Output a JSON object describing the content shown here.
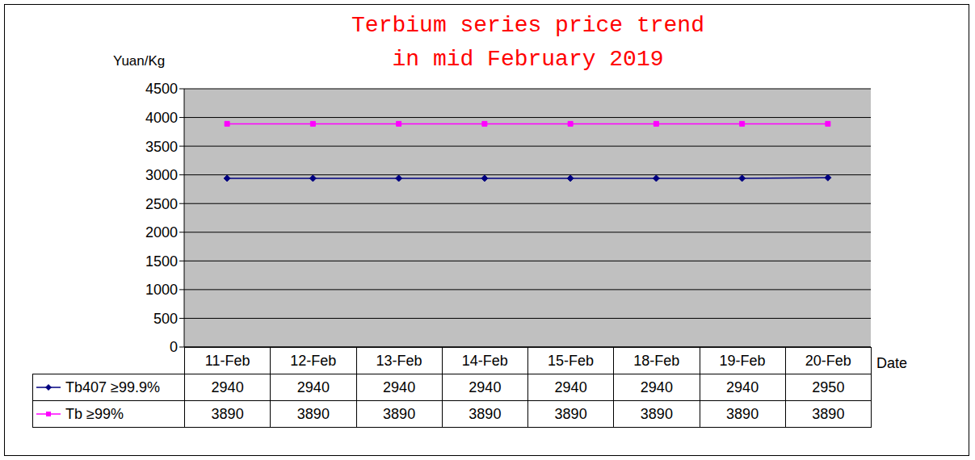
{
  "chart_data": {
    "type": "line",
    "title": "Terbium series price trend\nin mid February 2019",
    "y_label": "Yuan/Kg",
    "x_label": "Date",
    "categories": [
      "11-Feb",
      "12-Feb",
      "13-Feb",
      "14-Feb",
      "15-Feb",
      "18-Feb",
      "19-Feb",
      "20-Feb"
    ],
    "series": [
      {
        "name": "Tb407 ≥99.9%",
        "color": "#000080",
        "marker": "diamond",
        "values": [
          2940,
          2940,
          2940,
          2940,
          2940,
          2940,
          2940,
          2950
        ]
      },
      {
        "name": "Tb ≥99%",
        "color": "#ff00ff",
        "marker": "square",
        "values": [
          3890,
          3890,
          3890,
          3890,
          3890,
          3890,
          3890,
          3890
        ]
      }
    ],
    "ylim": [
      0,
      4500
    ],
    "yticks": [
      0,
      500,
      1000,
      1500,
      2000,
      2500,
      3000,
      3500,
      4000,
      4500
    ],
    "grid": true
  }
}
